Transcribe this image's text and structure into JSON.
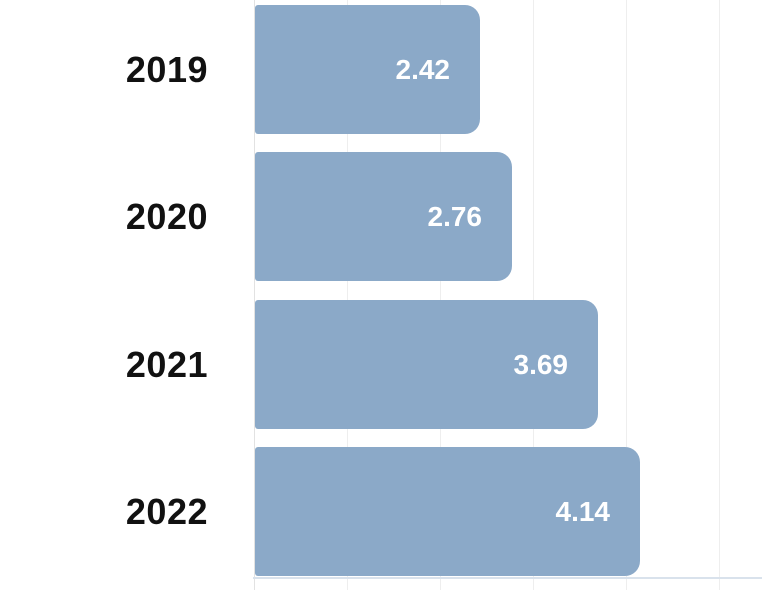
{
  "chart_data": {
    "type": "bar",
    "orientation": "horizontal",
    "title": "",
    "xlabel": "",
    "ylabel": "",
    "categories": [
      "2019",
      "2020",
      "2021",
      "2022"
    ],
    "values": [
      2.42,
      2.76,
      3.69,
      4.14
    ],
    "value_labels": [
      "2.42",
      "2.76",
      "3.69",
      "4.14"
    ],
    "xlim": [
      0,
      5.5
    ],
    "gridline_interval": 1,
    "grid": true,
    "legend": false,
    "colors": {
      "bar_fill": "#8BA9C8",
      "value_label": "#FFFFFF",
      "category_label": "#111111",
      "gridline": "#EEEEEE",
      "zero_gridline": "#E2E2E2",
      "axis_line": "#D9E2EC",
      "background": "#FFFFFF"
    }
  }
}
